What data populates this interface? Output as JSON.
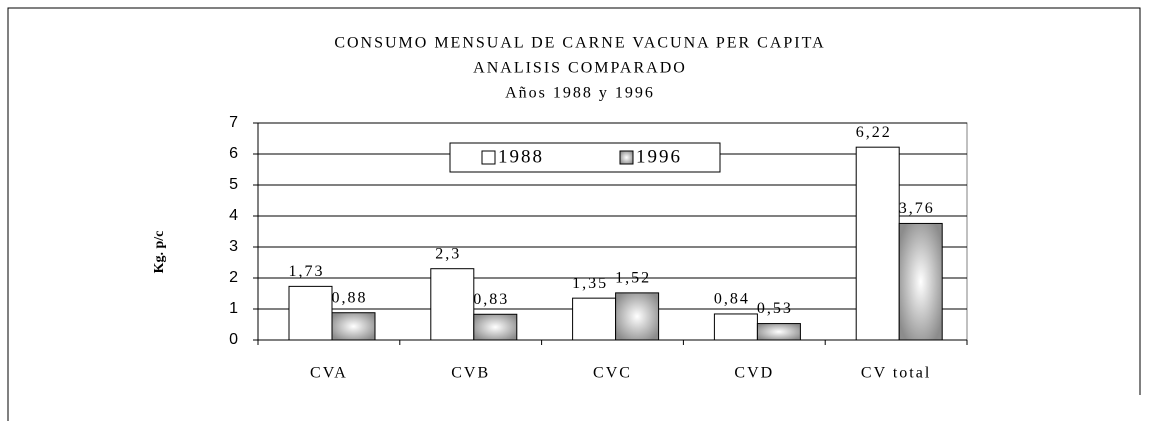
{
  "chart_data": {
    "type": "bar",
    "title_lines": [
      "CONSUMO MENSUAL DE CARNE VACUNA PER CAPITA",
      "ANALISIS COMPARADO",
      "Años 1988 y 1996"
    ],
    "y_label": "Kg. p/c",
    "categories": [
      "CVA",
      "CVB",
      "CVC",
      "CVD",
      "CV total"
    ],
    "series": [
      {
        "name": "1988",
        "color": "#ffffff",
        "values": [
          1.73,
          2.3,
          1.35,
          0.84,
          6.22
        ],
        "value_labels": [
          "1,73",
          "2,3",
          "1,35",
          "0,84",
          "6,22"
        ]
      },
      {
        "name": "1996",
        "color": "#8c8c8c",
        "values": [
          0.88,
          0.83,
          1.52,
          0.53,
          3.76
        ],
        "value_labels": [
          "0,88",
          "0,83",
          "1,52",
          "0,53",
          "3,76"
        ]
      }
    ],
    "ylim": [
      0,
      7
    ],
    "yticks": [
      0,
      1,
      2,
      3,
      4,
      5,
      6,
      7
    ],
    "grid": true,
    "legend": "top"
  }
}
